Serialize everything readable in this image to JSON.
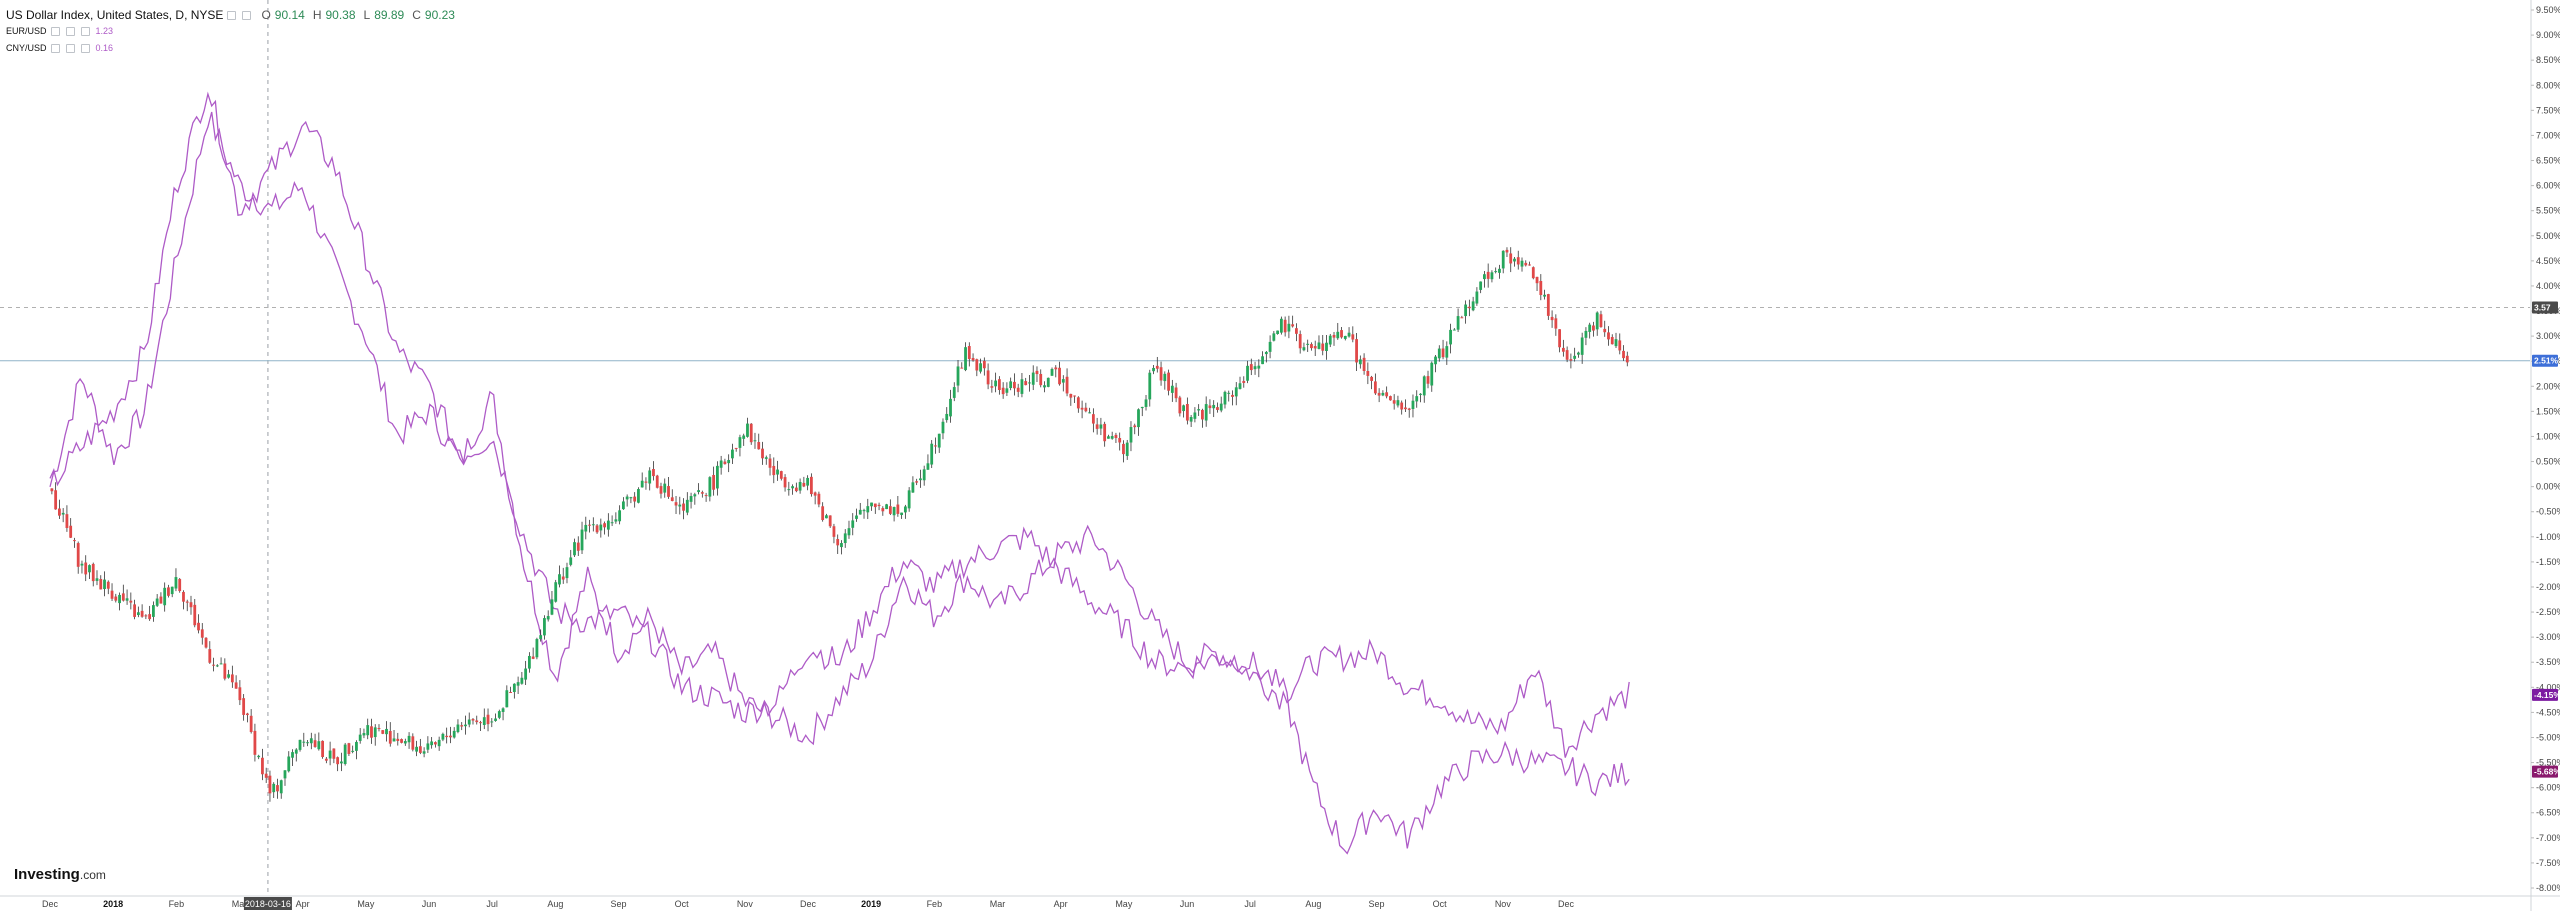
{
  "legend": {
    "main_symbol": "US Dollar Index, United States, D, NYSE",
    "ohlc": {
      "open_label": "O",
      "open": "90.14",
      "high_label": "H",
      "high": "90.38",
      "low_label": "L",
      "low": "89.89",
      "close_label": "C",
      "close": "90.23"
    },
    "compare": [
      {
        "symbol": "EUR/USD",
        "value": "1.23"
      },
      {
        "symbol": "CNY/USD",
        "value": "0.16"
      }
    ]
  },
  "brand": {
    "name": "Investing",
    "suffix": ".com"
  },
  "crosshair_date": "2018-03-16",
  "price_labels": {
    "dxy": "3.57",
    "last": "2.51%",
    "eur": "-4.15%",
    "cny": "-5.68%"
  },
  "colors": {
    "up": "#26a65b",
    "down": "#e04848",
    "compare_line": "#ae5bc7",
    "eur_badge": "#7c1ba1",
    "cny_badge": "#8a1a6d",
    "last_badge": "#3d6fd8",
    "dxy_badge": "#4a4a4a",
    "hline": "#90b4c8"
  },
  "chart_data": {
    "type": "line",
    "y_unit": "percent change",
    "ylim": [
      -8.0,
      9.5
    ],
    "y_ticks": [
      "9.50%",
      "9.00%",
      "8.50%",
      "8.00%",
      "7.50%",
      "7.00%",
      "6.50%",
      "6.00%",
      "5.50%",
      "5.00%",
      "4.50%",
      "4.00%",
      "3.50%",
      "3.00%",
      "2.50%",
      "2.00%",
      "1.50%",
      "1.00%",
      "0.50%",
      "0.00%",
      "-0.50%",
      "-1.00%",
      "-1.50%",
      "-2.00%",
      "-2.50%",
      "-3.00%",
      "-3.50%",
      "-4.00%",
      "-4.50%",
      "-5.00%",
      "-5.50%",
      "-6.00%",
      "-6.50%",
      "-7.00%",
      "-7.50%",
      "-8.00%"
    ],
    "x_ticks": [
      "Dec",
      "2018",
      "Feb",
      "Mar",
      "Apr",
      "May",
      "Jun",
      "Jul",
      "Aug",
      "Sep",
      "Oct",
      "Nov",
      "Dec",
      "2019",
      "Feb",
      "Mar",
      "Apr",
      "May",
      "Jun",
      "Jul",
      "Aug",
      "Sep",
      "Oct",
      "Nov",
      "Dec"
    ],
    "crosshair_index": 3.45,
    "series": [
      {
        "name": "US Dollar Index",
        "style": "candlestick",
        "x": [
          0,
          0.5,
          1,
          1.5,
          2,
          2.5,
          3,
          3.5,
          4,
          4.5,
          5,
          5.5,
          6,
          6.5,
          7,
          7.5,
          8,
          8.5,
          9,
          9.5,
          10,
          10.5,
          11,
          11.5,
          12,
          12.5,
          13,
          13.5,
          14,
          14.5,
          15,
          15.5,
          16,
          16.5,
          17,
          17.5,
          18,
          18.5,
          19,
          19.5,
          20,
          20.5,
          21,
          21.5,
          22,
          22.5,
          23,
          23.5,
          24,
          24.5,
          25
        ],
        "values": [
          0.0,
          -1.6,
          -2.1,
          -2.7,
          -1.8,
          -3.3,
          -4.2,
          -6.2,
          -4.9,
          -5.5,
          -4.8,
          -5.0,
          -5.3,
          -4.7,
          -4.6,
          -3.8,
          -2.0,
          -0.8,
          -0.6,
          0.3,
          -0.5,
          0.1,
          1.2,
          0.2,
          0.0,
          -1.1,
          -0.3,
          -0.5,
          0.9,
          2.7,
          1.9,
          2.1,
          2.2,
          1.3,
          0.7,
          2.4,
          1.4,
          1.6,
          2.3,
          3.2,
          2.7,
          3.1,
          1.8,
          1.5,
          2.6,
          3.8,
          4.6,
          4.3,
          2.4,
          3.4,
          2.5
        ],
        "candle_count": 420
      },
      {
        "name": "EUR/USD",
        "style": "line",
        "x": [
          0,
          0.5,
          1,
          1.5,
          2,
          2.5,
          3,
          3.5,
          4,
          4.5,
          5,
          5.5,
          6,
          6.5,
          7,
          7.5,
          8,
          8.5,
          9,
          9.5,
          10,
          10.5,
          11,
          11.5,
          12,
          12.5,
          13,
          13.5,
          14,
          14.5,
          15,
          15.5,
          16,
          16.5,
          17,
          17.5,
          18,
          18.5,
          19,
          19.5,
          20,
          20.5,
          21,
          21.5,
          22,
          22.5,
          23,
          23.5,
          24,
          24.5,
          25
        ],
        "values": [
          0.0,
          2.2,
          0.6,
          1.5,
          4.5,
          7.4,
          6.0,
          5.5,
          6.0,
          4.4,
          3.0,
          1.0,
          1.5,
          0.5,
          1.8,
          -1.5,
          -3.8,
          -1.8,
          -3.3,
          -2.6,
          -3.7,
          -3.3,
          -4.3,
          -4.6,
          -5.0,
          -4.2,
          -3.5,
          -1.8,
          -2.6,
          -1.8,
          -2.4,
          -1.9,
          -1.3,
          -1.0,
          -1.8,
          -2.8,
          -3.5,
          -3.3,
          -3.7,
          -4.2,
          -3.5,
          -3.4,
          -3.3,
          -4.0,
          -4.2,
          -4.7,
          -4.8,
          -3.6,
          -5.2,
          -4.5,
          -4.15
        ]
      },
      {
        "name": "CNY/USD",
        "style": "line",
        "x": [
          0,
          0.5,
          1,
          1.5,
          2,
          2.5,
          3,
          3.5,
          4,
          4.5,
          5,
          5.5,
          6,
          6.5,
          7,
          7.5,
          8,
          8.5,
          9,
          9.5,
          10,
          10.5,
          11,
          11.5,
          12,
          12.5,
          13,
          13.5,
          14,
          14.5,
          15,
          15.5,
          16,
          16.5,
          17,
          17.5,
          18,
          18.5,
          19,
          19.5,
          20,
          20.5,
          21,
          21.5,
          22,
          22.5,
          23,
          23.5,
          24,
          24.5,
          25
        ],
        "values": [
          0.0,
          0.8,
          1.5,
          2.7,
          6.0,
          8.0,
          5.5,
          6.3,
          7.2,
          6.4,
          4.6,
          2.7,
          2.0,
          0.6,
          1.0,
          -1.0,
          -2.5,
          -2.7,
          -2.5,
          -3.0,
          -4.0,
          -4.2,
          -4.5,
          -4.3,
          -3.2,
          -3.5,
          -2.5,
          -1.5,
          -2.0,
          -1.5,
          -1.2,
          -1.0,
          -1.7,
          -2.3,
          -2.8,
          -3.5,
          -3.6,
          -3.4,
          -3.5,
          -4.0,
          -6.0,
          -7.2,
          -6.4,
          -7.0,
          -6.0,
          -5.5,
          -5.3,
          -5.5,
          -5.6,
          -5.9,
          -5.68
        ]
      }
    ]
  }
}
